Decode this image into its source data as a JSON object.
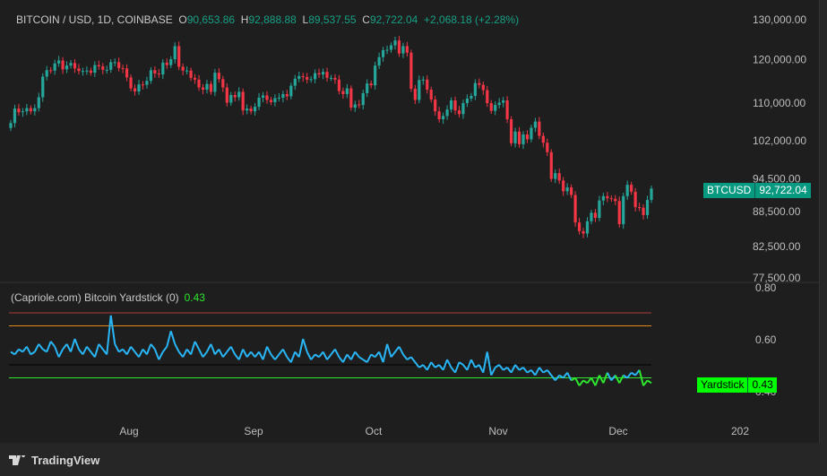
{
  "legend": {
    "symbol": "BITCOIN / USD, 1D, COINBASE",
    "o_label": "O",
    "o": "90,653.86",
    "h_label": "H",
    "h": "92,888.88",
    "l_label": "L",
    "l": "89,537.55",
    "c_label": "C",
    "c": "92,722.04",
    "change": "+2,068.18 (+2.28%)"
  },
  "indicator": {
    "name": "(Capriole.com) Bitcoin Yardstick (0)",
    "value": "0.43",
    "tag_label": "Yardstick",
    "tag_value": "0.43"
  },
  "price_tag": {
    "symbol": "BTCUSD",
    "value": "92,722.04"
  },
  "brand": "TradingView",
  "colors": {
    "up": "#26a69a",
    "down": "#f23645",
    "yardstick_high": "#29b6f6",
    "yardstick_low": "#2ee62e",
    "line_red": "#b03a3a",
    "line_orange": "#e08a1e",
    "accent": "#089981"
  },
  "chart_data": [
    {
      "type": "candlestick",
      "scale": "log",
      "ylim": [
        77500,
        130000
      ],
      "yticks": [
        "130,000.00",
        "120,000.00",
        "110,000.00",
        "102,000.00",
        "94,500.00",
        "88,500.00",
        "82,500.00",
        "77,500.00"
      ],
      "ytick_values": [
        130000,
        120000,
        110000,
        102000,
        94500,
        88500,
        82500,
        77500
      ],
      "xticks": [
        "Aug",
        "Sep",
        "Oct",
        "Nov",
        "Dec",
        "202"
      ],
      "close": [
        105.7,
        108.8,
        108.0,
        108.2,
        108.9,
        108.2,
        108.9,
        111.3,
        116.0,
        117.5,
        117.4,
        119.1,
        119.8,
        117.7,
        118.6,
        119.2,
        117.9,
        117.3,
        117.3,
        117.4,
        116.9,
        118.7,
        118.4,
        117.6,
        117.6,
        119.4,
        119.4,
        118.0,
        117.9,
        115.8,
        113.3,
        112.6,
        114.2,
        114.1,
        115.0,
        117.5,
        116.7,
        116.5,
        119.3,
        118.7,
        120.1,
        123.3,
        118.3,
        117.4,
        117.4,
        115.7,
        115.3,
        113.5,
        113.0,
        114.3,
        112.5,
        116.9,
        115.4,
        113.5,
        110.1,
        111.8,
        111.3,
        112.5,
        108.4,
        108.8,
        108.2,
        109.2,
        111.2,
        111.7,
        110.7,
        110.2,
        111.1,
        111.2,
        112.0,
        111.5,
        113.9,
        115.5,
        116.1,
        115.9,
        115.3,
        115.4,
        116.8,
        116.5,
        117.1,
        115.7,
        115.7,
        115.3,
        112.7,
        112.0,
        113.3,
        109.0,
        109.7,
        109.6,
        112.2,
        114.4,
        114.0,
        118.6,
        120.6,
        122.3,
        122.4,
        123.5,
        124.7,
        121.5,
        123.3,
        121.7,
        113.2,
        110.7,
        115.2,
        115.3,
        113.0,
        110.8,
        108.2,
        106.5,
        107.2,
        108.6,
        110.6,
        108.4,
        107.6,
        110.0,
        111.0,
        111.6,
        114.5,
        114.1,
        112.9,
        110.0,
        108.3,
        109.6,
        110.1,
        110.6,
        106.5,
        101.5,
        103.9,
        101.3,
        103.3,
        102.3,
        104.7,
        106.0,
        103.0,
        101.6,
        99.7,
        94.5,
        95.6,
        94.2,
        92.2,
        92.9,
        91.5,
        86.6,
        85.1,
        84.7,
        86.8,
        88.3,
        87.4,
        90.5,
        91.3,
        90.9,
        90.8,
        90.4,
        86.3,
        91.3,
        93.4,
        92.1,
        89.3,
        89.2,
        87.9,
        90.6,
        92.7
      ]
    },
    {
      "type": "line",
      "ylim": [
        0.4,
        0.8
      ],
      "yticks": [
        "0.80",
        "0.60",
        "0.40"
      ],
      "ytick_values": [
        0.8,
        0.6,
        0.4
      ],
      "levels": [
        0.7,
        0.65,
        0.5,
        0.45
      ],
      "values": [
        0.55,
        0.54,
        0.56,
        0.55,
        0.57,
        0.54,
        0.55,
        0.58,
        0.56,
        0.55,
        0.59,
        0.57,
        0.53,
        0.56,
        0.58,
        0.55,
        0.6,
        0.56,
        0.54,
        0.57,
        0.55,
        0.53,
        0.58,
        0.56,
        0.54,
        0.69,
        0.58,
        0.55,
        0.56,
        0.54,
        0.57,
        0.55,
        0.53,
        0.56,
        0.54,
        0.58,
        0.56,
        0.52,
        0.55,
        0.57,
        0.63,
        0.58,
        0.55,
        0.53,
        0.56,
        0.54,
        0.59,
        0.56,
        0.53,
        0.55,
        0.58,
        0.54,
        0.56,
        0.53,
        0.55,
        0.57,
        0.54,
        0.52,
        0.56,
        0.53,
        0.55,
        0.53,
        0.55,
        0.52,
        0.57,
        0.54,
        0.52,
        0.54,
        0.56,
        0.53,
        0.51,
        0.55,
        0.53,
        0.6,
        0.55,
        0.52,
        0.54,
        0.53,
        0.55,
        0.52,
        0.54,
        0.56,
        0.53,
        0.51,
        0.54,
        0.52,
        0.55,
        0.53,
        0.52,
        0.51,
        0.54,
        0.53,
        0.55,
        0.51,
        0.58,
        0.53,
        0.55,
        0.57,
        0.54,
        0.52,
        0.53,
        0.51,
        0.49,
        0.5,
        0.48,
        0.51,
        0.49,
        0.5,
        0.48,
        0.52,
        0.49,
        0.47,
        0.51,
        0.5,
        0.48,
        0.52,
        0.49,
        0.5,
        0.47,
        0.55,
        0.46,
        0.49,
        0.5,
        0.48,
        0.49,
        0.47,
        0.5,
        0.48,
        0.49,
        0.47,
        0.48,
        0.46,
        0.49,
        0.47,
        0.48,
        0.46,
        0.44,
        0.46,
        0.45,
        0.47,
        0.44,
        0.45,
        0.42,
        0.44,
        0.43,
        0.45,
        0.42,
        0.46,
        0.43,
        0.47,
        0.44,
        0.46,
        0.43,
        0.46,
        0.45,
        0.47,
        0.46,
        0.48,
        0.42,
        0.44,
        0.43
      ]
    }
  ]
}
